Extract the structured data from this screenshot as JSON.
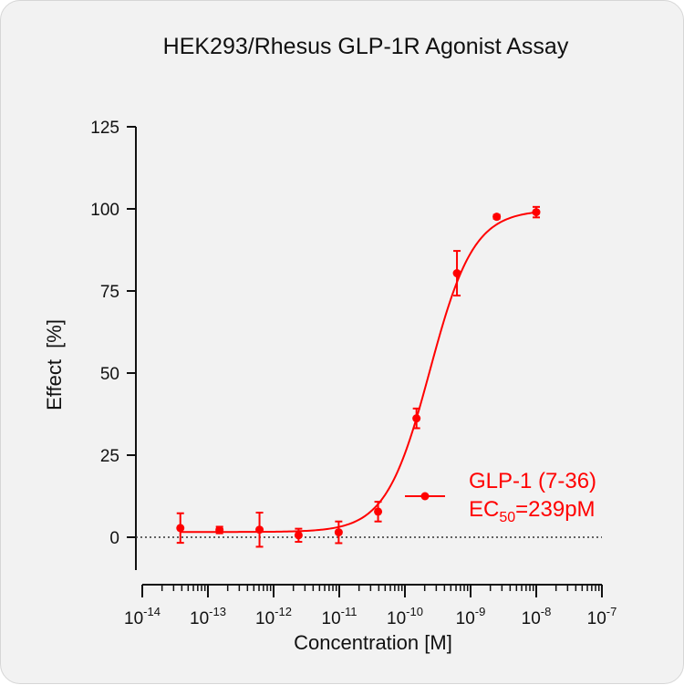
{
  "chart_data": {
    "type": "scatter",
    "title": "HEK293/Rhesus GLP-1R Agonist Assay",
    "xlabel": "Concentration [M]",
    "ylabel": "Effect  [%]",
    "x_scale": "log10",
    "xlim": [
      1e-14,
      1e-07
    ],
    "ylim": [
      -10,
      125
    ],
    "y_ticks": [
      0,
      25,
      50,
      75,
      100,
      125
    ],
    "y_tick_labels": [
      "0",
      "25",
      "50",
      "75",
      "100",
      "125"
    ],
    "x_tick_exponents": [
      "-14",
      "-13",
      "-12",
      "-11",
      "-10",
      "-9",
      "-8",
      "-7"
    ],
    "x_tick_base": "10",
    "x_ticks": [
      1e-14,
      1e-13,
      1e-12,
      1e-11,
      1e-10,
      1e-09,
      1e-08,
      1e-07
    ],
    "reference_line": {
      "y": 0,
      "style": "dotted"
    },
    "grid": false,
    "legend_position": "right-middle",
    "series": [
      {
        "name": "GLP-1 (7-36)",
        "annotation_prefix": "EC",
        "annotation_subscript": "50",
        "annotation_value": "=239pM",
        "color": "#ff0000",
        "points": [
          {
            "x": 3.8e-14,
            "y": 2.8,
            "err": 4.5
          },
          {
            "x": 1.5e-13,
            "y": 2.2,
            "err": 1.0
          },
          {
            "x": 6.1e-13,
            "y": 2.3,
            "err": 5.2
          },
          {
            "x": 2.4e-12,
            "y": 0.6,
            "err": 2.0
          },
          {
            "x": 9.8e-12,
            "y": 1.5,
            "err": 3.3
          },
          {
            "x": 3.9e-11,
            "y": 7.8,
            "err": 3.0
          },
          {
            "x": 1.5e-10,
            "y": 36.2,
            "err": 3.0
          },
          {
            "x": 6.2e-10,
            "y": 80.4,
            "err": 6.8
          },
          {
            "x": 2.5e-09,
            "y": 97.6,
            "err": 0.6
          },
          {
            "x": 1e-08,
            "y": 99.0,
            "err": 1.6
          }
        ],
        "fit": {
          "model": "4PL",
          "bottom": 1.6,
          "top": 99.7,
          "ec50": 2.39e-10,
          "hill": 1.3
        }
      }
    ]
  }
}
